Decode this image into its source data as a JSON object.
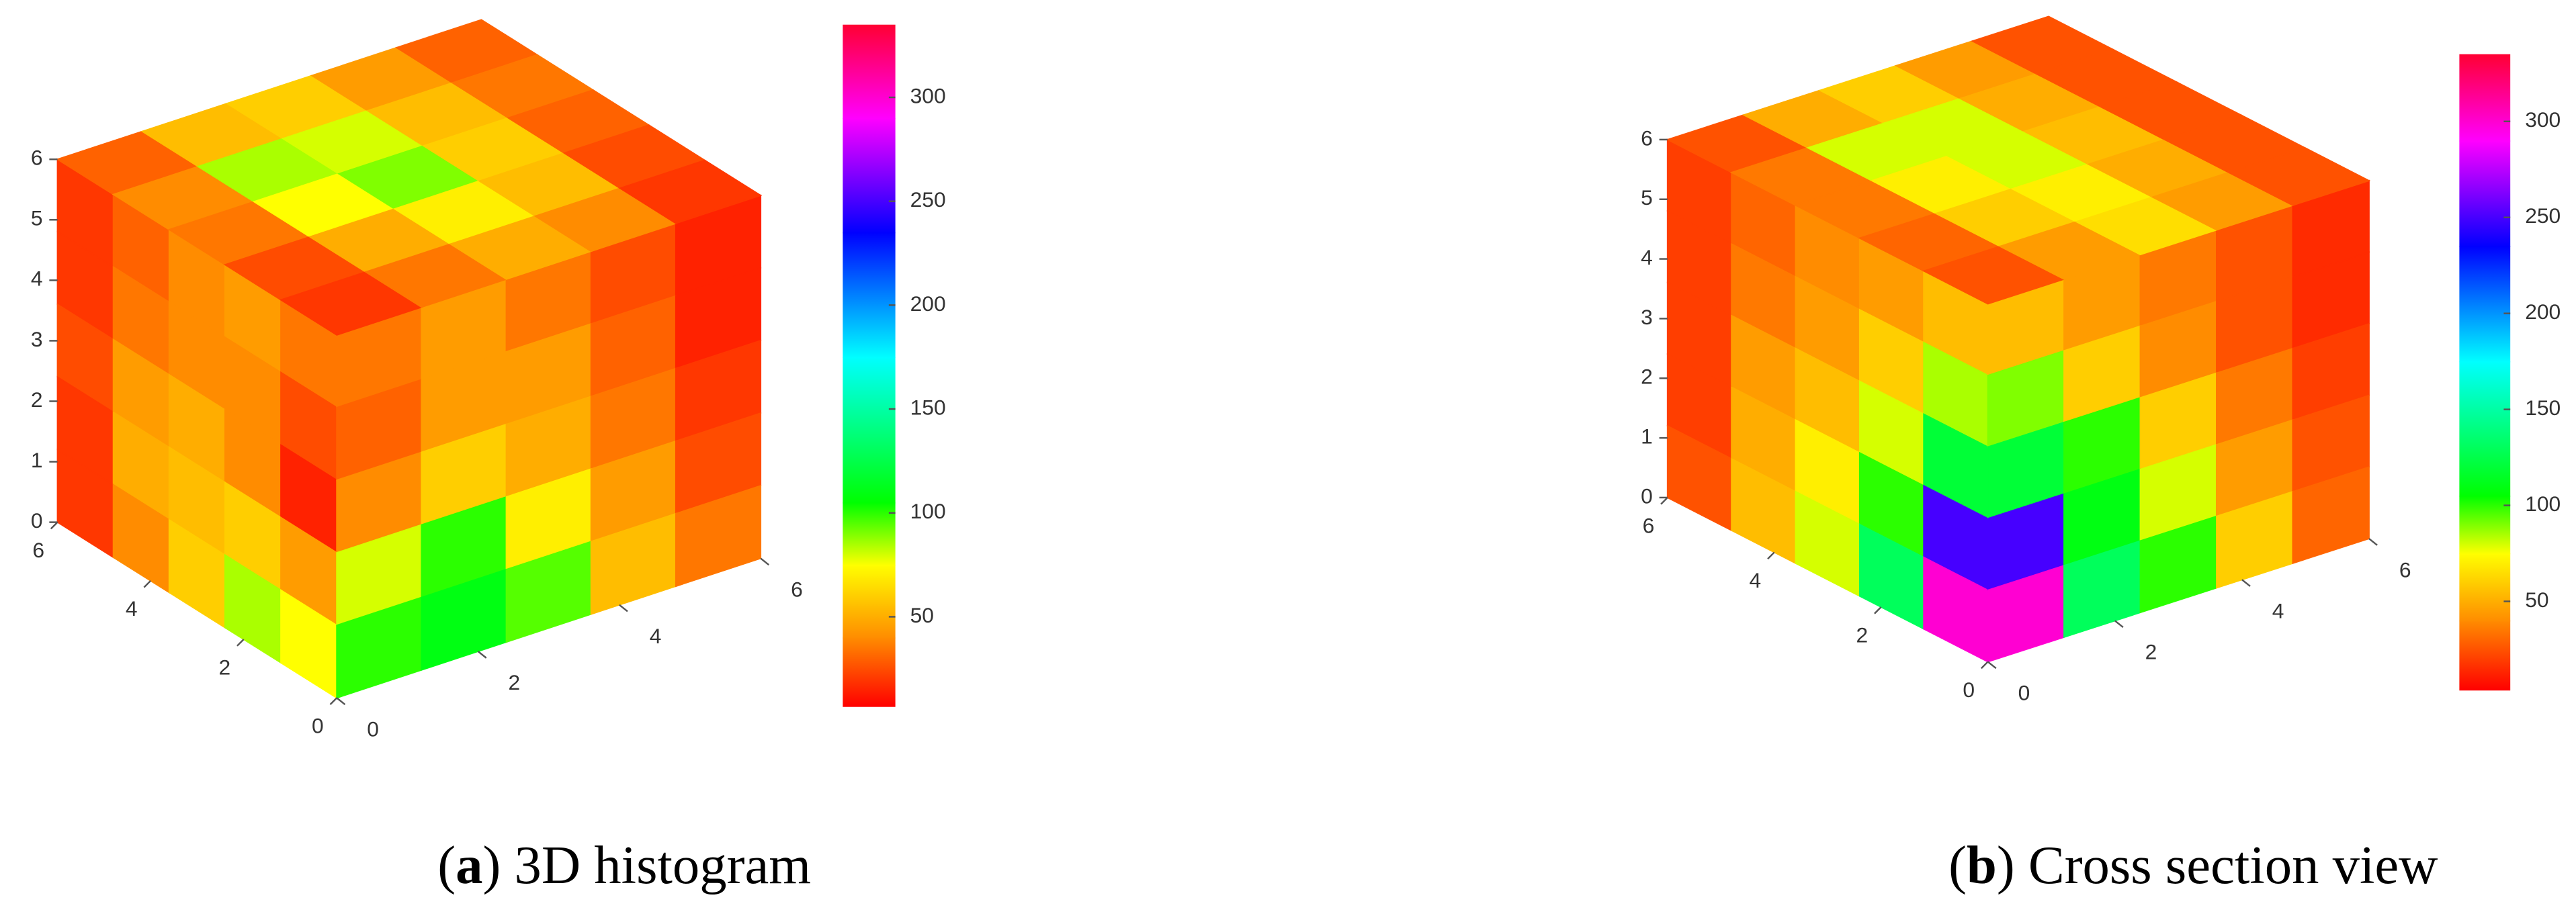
{
  "chart_data": [
    {
      "type": "cube-slice",
      "caption": [
        "(",
        "a",
        ") 3D histogram"
      ],
      "xlim": [
        0,
        6
      ],
      "ylim": [
        0,
        6
      ],
      "zlim": [
        0,
        6
      ],
      "xticks": [
        0,
        2,
        4,
        6
      ],
      "yticks": [
        0,
        2,
        4,
        6
      ],
      "zticks": [
        0,
        1,
        2,
        3,
        4,
        5,
        6
      ],
      "clim": [
        7,
        335
      ],
      "cticks": [
        50,
        100,
        150,
        200,
        250,
        300
      ],
      "colormap": [
        {
          "value": 7,
          "color": "#ff0000"
        },
        {
          "value": 40,
          "color": "#ff8c00"
        },
        {
          "value": 75,
          "color": "#ffff00"
        },
        {
          "value": 105,
          "color": "#00ff00"
        },
        {
          "value": 175,
          "color": "#00ffff"
        },
        {
          "value": 235,
          "color": "#0000ff"
        },
        {
          "value": 290,
          "color": "#ff00ff"
        },
        {
          "value": 335,
          "color": "#ff0033"
        }
      ],
      "faces": {
        "top": [
          [
            30,
            55,
            60,
            45,
            30
          ],
          [
            40,
            85,
            80,
            55,
            35
          ],
          [
            35,
            75,
            90,
            60,
            30
          ],
          [
            25,
            50,
            70,
            55,
            25
          ],
          [
            20,
            35,
            50,
            40,
            20
          ]
        ],
        "left": [
          [
            20,
            30,
            40,
            45,
            35
          ],
          [
            20,
            35,
            40,
            40,
            25
          ],
          [
            25,
            45,
            50,
            40,
            15
          ],
          [
            20,
            50,
            55,
            60,
            45
          ],
          [
            20,
            40,
            60,
            85,
            75
          ]
        ],
        "right": [
          [
            35,
            45,
            35,
            25,
            15
          ],
          [
            30,
            45,
            45,
            30,
            15
          ],
          [
            40,
            60,
            50,
            35,
            20
          ],
          [
            80,
            100,
            70,
            45,
            25
          ],
          [
            100,
            110,
            95,
            55,
            35
          ]
        ]
      }
    },
    {
      "type": "cube-slice",
      "caption": [
        "(",
        "b",
        ") Cross section view"
      ],
      "xlim": [
        0,
        6
      ],
      "ylim": [
        0,
        6
      ],
      "zlim": [
        0,
        6
      ],
      "xticks": [
        0,
        2,
        4,
        6
      ],
      "yticks": [
        0,
        2,
        4,
        6
      ],
      "zticks": [
        0,
        1,
        2,
        3,
        4,
        5,
        6
      ],
      "clim": [
        4,
        335
      ],
      "cticks": [
        50,
        100,
        150,
        200,
        250,
        300
      ],
      "colormap": [
        {
          "value": 4,
          "color": "#ff0000"
        },
        {
          "value": 40,
          "color": "#ff8c00"
        },
        {
          "value": 75,
          "color": "#ffff00"
        },
        {
          "value": 105,
          "color": "#00ff00"
        },
        {
          "value": 175,
          "color": "#00ffff"
        },
        {
          "value": 235,
          "color": "#0000ff"
        },
        {
          "value": 290,
          "color": "#ff00ff"
        },
        {
          "value": 335,
          "color": "#ff0033"
        }
      ],
      "faces": {
        "top": [
          [
            25,
            50,
            60,
            45,
            25
          ],
          [
            35,
            80,
            80,
            50,
            25
          ],
          [
            35,
            70,
            80,
            55,
            25
          ],
          [
            30,
            60,
            70,
            50,
            25
          ],
          [
            25,
            45,
            65,
            45,
            25
          ]
        ],
        "left": [
          [
            20,
            30,
            40,
            45,
            55
          ],
          [
            20,
            35,
            45,
            60,
            85
          ],
          [
            20,
            45,
            55,
            80,
            120
          ],
          [
            20,
            50,
            70,
            100,
            250
          ],
          [
            25,
            55,
            80,
            130,
            300
          ]
        ],
        "right": [
          [
            55,
            45,
            35,
            25,
            15
          ],
          [
            90,
            60,
            40,
            25,
            15
          ],
          [
            120,
            100,
            60,
            35,
            20
          ],
          [
            250,
            110,
            80,
            45,
            25
          ],
          [
            300,
            130,
            100,
            60,
            30
          ]
        ]
      }
    }
  ]
}
